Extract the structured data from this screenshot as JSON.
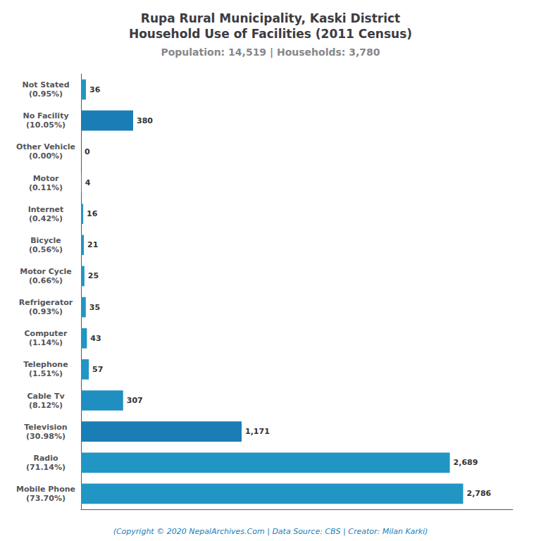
{
  "chart_data": {
    "type": "bar",
    "orientation": "horizontal",
    "title": "Rupa Rural Municipality, Kaski District\nHousehold Use of Facilities (2011 Census)",
    "subtitle": "Population: 14,519 | Households: 3,780",
    "annotations": [
      "(Copyright © 2020 NepalArchives.Com | Data Source: CBS | Creator: Milan Karki)"
    ],
    "categories": [
      "Mobile Phone\n(73.70%)",
      "Radio\n(71.14%)",
      "Television\n(30.98%)",
      "Cable Tv\n(8.12%)",
      "Telephone\n(1.51%)",
      "Computer\n(1.14%)",
      "Refrigerator\n(0.93%)",
      "Motor Cycle\n(0.66%)",
      "Bicycle\n(0.56%)",
      "Internet\n(0.42%)",
      "Motor\n(0.11%)",
      "Other Vehicle\n(0.00%)",
      "No Facility\n(10.05%)",
      "Not Stated\n(0.95%)"
    ],
    "values": [
      2786,
      2689,
      1171,
      307,
      57,
      43,
      35,
      25,
      21,
      16,
      4,
      0,
      380,
      36
    ],
    "value_labels": [
      "2,786",
      "2,689",
      "1,171",
      "307",
      "57",
      "43",
      "35",
      "25",
      "21",
      "16",
      "4",
      "0",
      "380",
      "36"
    ],
    "colors": [
      "#2196c4",
      "#2196c4",
      "#1a7db5",
      "#1f8ec0",
      "#2196c4",
      "#2196c4",
      "#2196c4",
      "#2196c4",
      "#2196c4",
      "#2196c4",
      "#2196c4",
      "#2196c4",
      "#1a7db5",
      "#2196c4"
    ],
    "xlim": [
      0,
      3148.18
    ],
    "data_labels": true,
    "tick_labels": "y",
    "grid": false
  }
}
